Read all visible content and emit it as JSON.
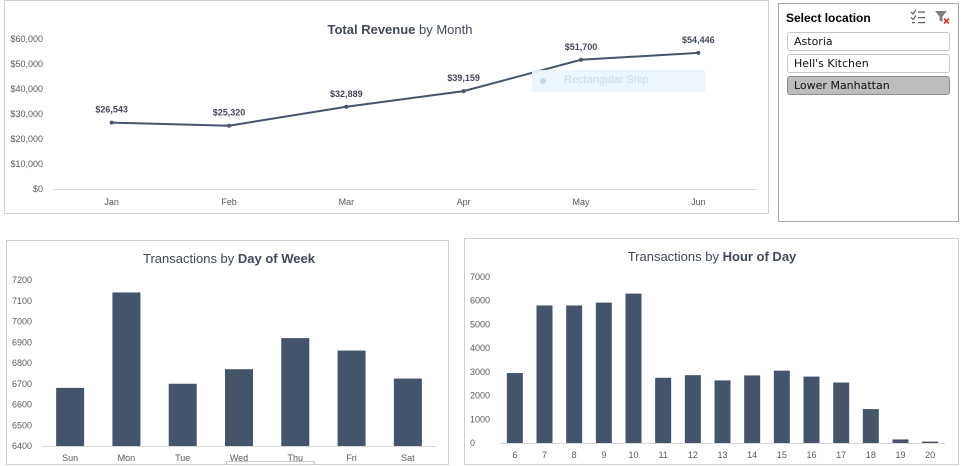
{
  "slicer": {
    "title": "Select location",
    "icons": [
      "multi-select-icon",
      "clear-filter-icon"
    ],
    "items": [
      {
        "label": "Astoria",
        "selected": false
      },
      {
        "label": "Hell's Kitchen",
        "selected": false
      },
      {
        "label": "Lower Manhattan",
        "selected": true
      }
    ]
  },
  "overlay": {
    "snip_label": "Rectangular Snip"
  },
  "colors": {
    "series": "#44546a",
    "title": "#404a58",
    "axis_text": "#595959",
    "gridline": "#d9d9d9"
  },
  "chart_data": [
    {
      "type": "line",
      "title_parts": [
        {
          "text": "Total Revenue",
          "bold": true
        },
        {
          "text": " by Month",
          "bold": false
        }
      ],
      "categories": [
        "Jan",
        "Feb",
        "Mar",
        "Apr",
        "May",
        "Jun"
      ],
      "values": [
        26543,
        25320,
        32889,
        39159,
        51700,
        54446
      ],
      "data_labels": [
        "$26,543",
        "$25,320",
        "$32,889",
        "$39,159",
        "$51,700",
        "$54,446"
      ],
      "ylim": [
        0,
        60000
      ],
      "yticks": [
        "$0",
        "$10,000",
        "$20,000",
        "$30,000",
        "$40,000",
        "$50,000",
        "$60,000"
      ],
      "grid": false,
      "legend": "none"
    },
    {
      "type": "bar",
      "title_parts": [
        {
          "text": "Transactions by ",
          "bold": false
        },
        {
          "text": "Day of Week",
          "bold": true
        }
      ],
      "categories": [
        "Sun",
        "Mon",
        "Tue",
        "Wed",
        "Thu",
        "Fri",
        "Sat"
      ],
      "values": [
        6680,
        7140,
        6700,
        6770,
        6920,
        6860,
        6725
      ],
      "ylim": [
        6400,
        7200
      ],
      "yticks": [
        "6400",
        "6500",
        "6600",
        "6700",
        "6800",
        "6900",
        "7000",
        "7100",
        "7200"
      ],
      "grid": false,
      "legend": "none"
    },
    {
      "type": "bar",
      "title_parts": [
        {
          "text": "Transactions by ",
          "bold": false
        },
        {
          "text": "Hour of Day",
          "bold": true
        }
      ],
      "categories": [
        "6",
        "7",
        "8",
        "9",
        "10",
        "11",
        "12",
        "13",
        "14",
        "15",
        "16",
        "17",
        "18",
        "19",
        "20"
      ],
      "values": [
        2950,
        5800,
        5800,
        5920,
        6300,
        2750,
        2860,
        2640,
        2850,
        3050,
        2800,
        2550,
        1430,
        150,
        60
      ],
      "ylim": [
        0,
        7000
      ],
      "yticks": [
        "0",
        "1000",
        "2000",
        "3000",
        "4000",
        "5000",
        "6000",
        "7000"
      ],
      "grid": false,
      "legend": "none"
    }
  ]
}
